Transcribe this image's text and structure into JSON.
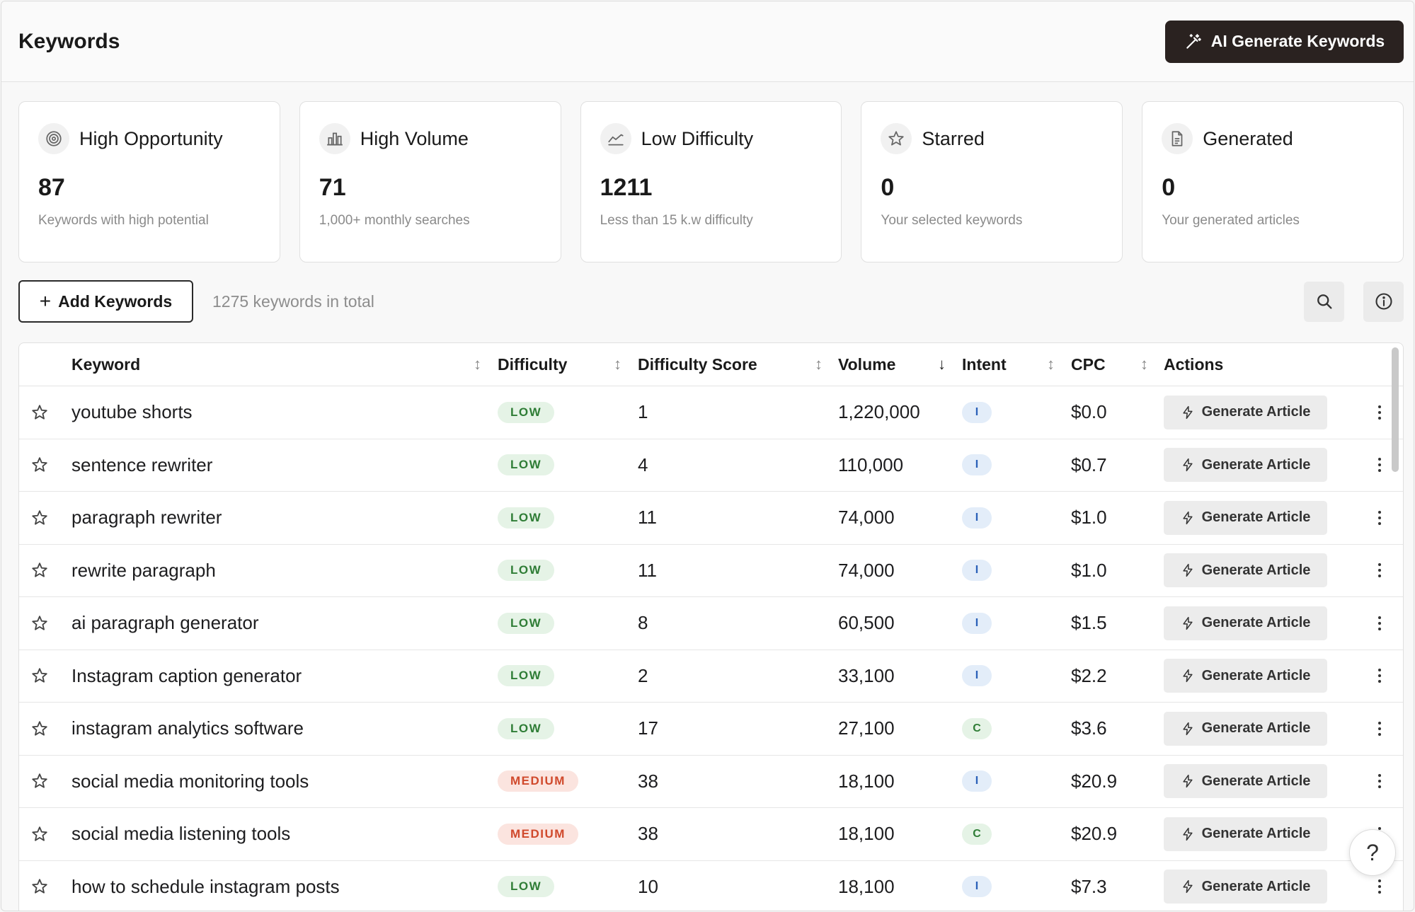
{
  "header": {
    "title": "Keywords",
    "ai_button_label": "AI Generate Keywords"
  },
  "cards": [
    {
      "icon": "target-icon",
      "title": "High Opportunity",
      "value": "87",
      "sub": "Keywords with high potential"
    },
    {
      "icon": "bar-chart-icon",
      "title": "High Volume",
      "value": "71",
      "sub": "1,000+ monthly searches"
    },
    {
      "icon": "trend-line-icon",
      "title": "Low Difficulty",
      "value": "1211",
      "sub": "Less than 15 k.w difficulty"
    },
    {
      "icon": "star-icon",
      "title": "Starred",
      "value": "0",
      "sub": "Your selected keywords"
    },
    {
      "icon": "document-icon",
      "title": "Generated",
      "value": "0",
      "sub": "Your generated articles"
    }
  ],
  "toolbar": {
    "add_label": "Add Keywords",
    "total_text": "1275 keywords in total"
  },
  "table": {
    "columns": {
      "keyword": "Keyword",
      "difficulty": "Difficulty",
      "difficulty_score": "Difficulty Score",
      "volume": "Volume",
      "intent": "Intent",
      "cpc": "CPC",
      "actions": "Actions"
    },
    "action_label": "Generate Article",
    "rows": [
      {
        "keyword": "youtube shorts",
        "difficulty": "LOW",
        "score": "1",
        "volume": "1,220,000",
        "intent": "I",
        "cpc": "$0.0"
      },
      {
        "keyword": "sentence rewriter",
        "difficulty": "LOW",
        "score": "4",
        "volume": "110,000",
        "intent": "I",
        "cpc": "$0.7"
      },
      {
        "keyword": "paragraph rewriter",
        "difficulty": "LOW",
        "score": "11",
        "volume": "74,000",
        "intent": "I",
        "cpc": "$1.0"
      },
      {
        "keyword": "rewrite paragraph",
        "difficulty": "LOW",
        "score": "11",
        "volume": "74,000",
        "intent": "I",
        "cpc": "$1.0"
      },
      {
        "keyword": "ai paragraph generator",
        "difficulty": "LOW",
        "score": "8",
        "volume": "60,500",
        "intent": "I",
        "cpc": "$1.5"
      },
      {
        "keyword": "Instagram caption generator",
        "difficulty": "LOW",
        "score": "2",
        "volume": "33,100",
        "intent": "I",
        "cpc": "$2.2"
      },
      {
        "keyword": "instagram analytics software",
        "difficulty": "LOW",
        "score": "17",
        "volume": "27,100",
        "intent": "C",
        "cpc": "$3.6"
      },
      {
        "keyword": "social media monitoring tools",
        "difficulty": "MEDIUM",
        "score": "38",
        "volume": "18,100",
        "intent": "I",
        "cpc": "$20.9"
      },
      {
        "keyword": "social media listening tools",
        "difficulty": "MEDIUM",
        "score": "38",
        "volume": "18,100",
        "intent": "C",
        "cpc": "$20.9"
      },
      {
        "keyword": "how to schedule instagram posts",
        "difficulty": "LOW",
        "score": "10",
        "volume": "18,100",
        "intent": "I",
        "cpc": "$7.3"
      }
    ]
  },
  "help": {
    "label": "?"
  }
}
